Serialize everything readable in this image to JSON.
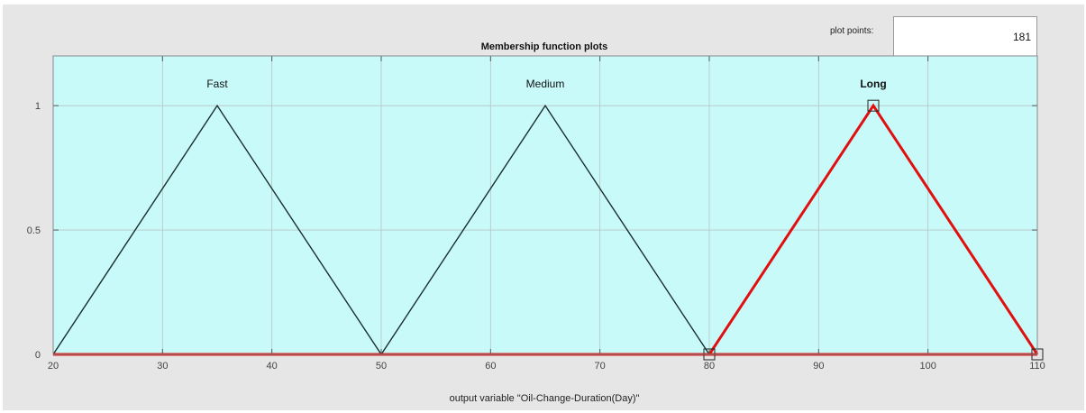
{
  "plot_points": {
    "label": "plot points:",
    "value": "181"
  },
  "chart_data": {
    "type": "line",
    "title": "Membership function plots",
    "xlabel": "output variable \"Oil-Change-Duration(Day)\"",
    "ylabel": "",
    "xlim": [
      20,
      110
    ],
    "ylim": [
      0,
      1.2
    ],
    "xticks": [
      20,
      30,
      40,
      50,
      60,
      70,
      80,
      90,
      100,
      110
    ],
    "yticks": [
      0,
      0.5,
      1
    ],
    "ytick_labels": [
      "0",
      "0.5",
      "1"
    ],
    "grid": true,
    "background_color": "#c8fafa",
    "series": [
      {
        "name": "Fast",
        "x": [
          20,
          35,
          50
        ],
        "y": [
          0,
          1,
          0
        ],
        "color": "#1a2e2e",
        "selected": false
      },
      {
        "name": "Medium",
        "x": [
          50,
          65,
          80
        ],
        "y": [
          0,
          1,
          0
        ],
        "color": "#1a2e2e",
        "selected": false
      },
      {
        "name": "Long",
        "x": [
          80,
          95,
          110
        ],
        "y": [
          0,
          1,
          0
        ],
        "color": "#e01010",
        "selected": true
      }
    ]
  }
}
